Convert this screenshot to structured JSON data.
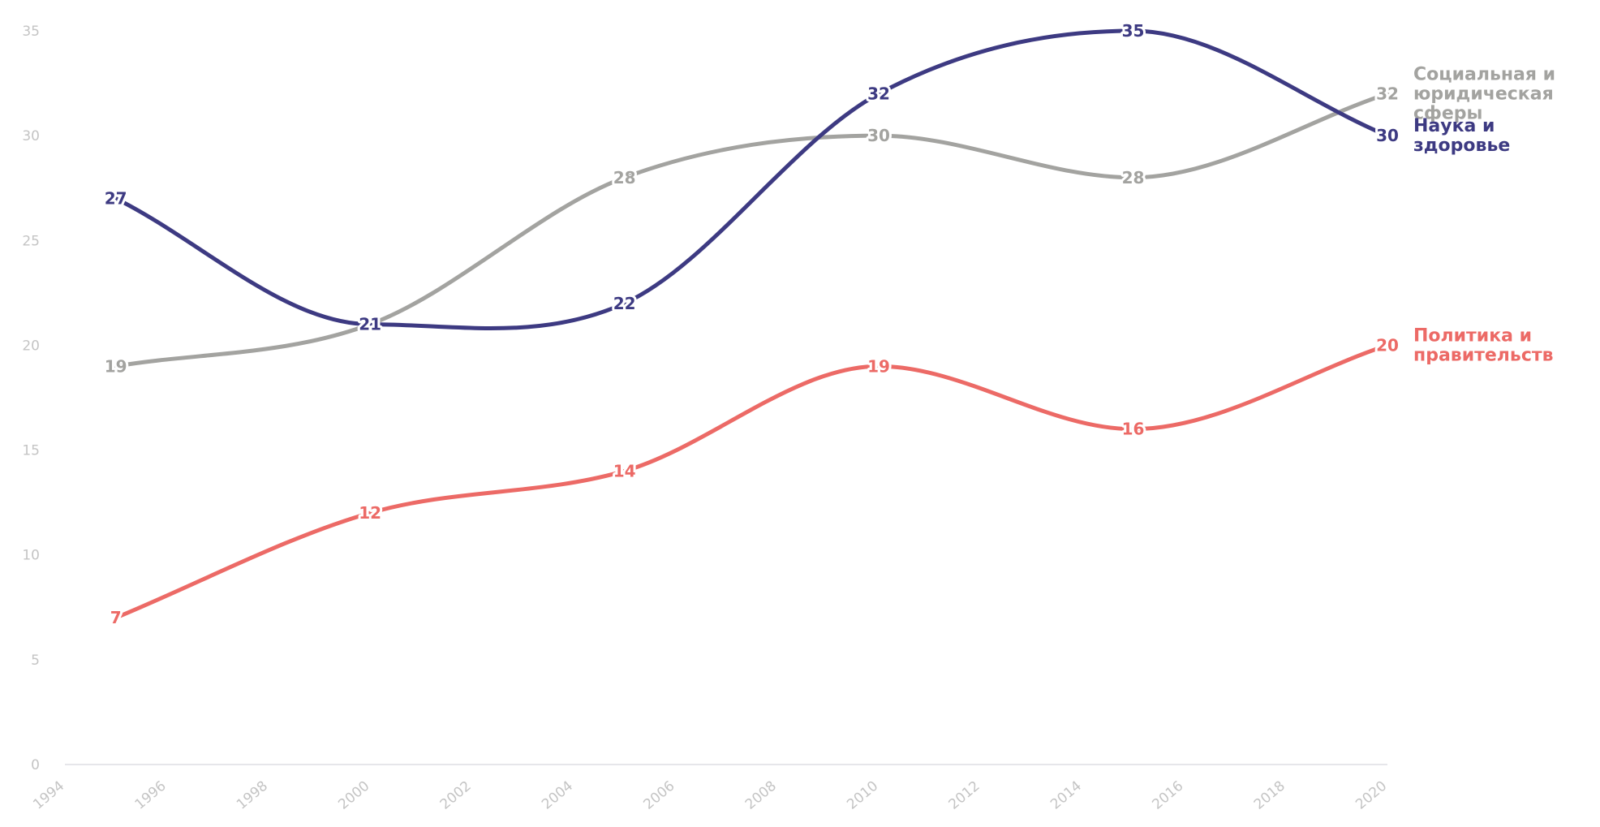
{
  "chart_data": {
    "type": "line",
    "x": [
      1995,
      2000,
      2005,
      2010,
      2015,
      2020
    ],
    "xlim": [
      1994,
      2020
    ],
    "ylim": [
      0,
      35
    ],
    "x_ticks": [
      "1994",
      "1996",
      "1998",
      "2000",
      "2002",
      "2004",
      "2006",
      "2008",
      "2010",
      "2012",
      "2014",
      "2016",
      "2018",
      "2020"
    ],
    "y_ticks": [
      "0",
      "5",
      "10",
      "15",
      "20",
      "25",
      "30",
      "35"
    ],
    "grid": false,
    "legend": "inline labels at right end of lines",
    "series": [
      {
        "name": "Социальная и юридическая сферы",
        "label_lines": [
          "Социальная и",
          "юридическая",
          "сферы"
        ],
        "color": "#a3a3a0",
        "values": [
          19,
          21,
          28,
          30,
          28,
          32
        ]
      },
      {
        "name": "Наука и здоровье",
        "label_lines": [
          "Наука и",
          "здоровье"
        ],
        "color": "#3d3a82",
        "values": [
          27,
          21,
          22,
          32,
          35,
          30
        ]
      },
      {
        "name": "Политика и правительств",
        "label_lines": [
          "Политика и",
          "правительств"
        ],
        "color": "#ec6a66",
        "values": [
          7,
          12,
          14,
          19,
          16,
          20
        ]
      }
    ]
  }
}
